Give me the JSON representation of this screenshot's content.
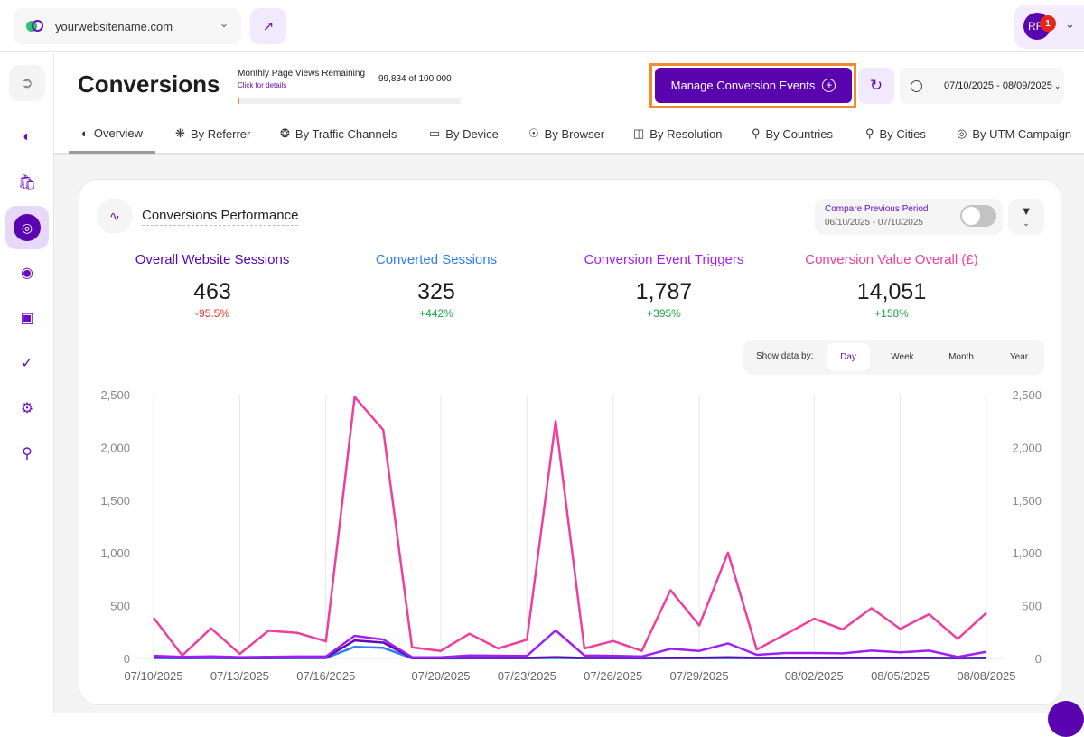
{
  "topbar": {
    "site": "yourwebsitename.com",
    "user_initials": "RF",
    "notification_count": "1"
  },
  "sidebar": {
    "items": [
      "collapse",
      "dashboard",
      "ecommerce",
      "conversions",
      "heatmaps",
      "feedback",
      "security",
      "settings",
      "locations"
    ],
    "active": "conversions"
  },
  "page": {
    "title": "Conversions",
    "page_views": {
      "label": "Monthly Page Views Remaining",
      "link": "Click for details",
      "value": "99,834 of 100,000",
      "used_fraction": 0.00166
    },
    "manage_button": "Manage Conversion Events",
    "date_range": "07/10/2025 - 08/09/2025"
  },
  "tabs": [
    {
      "label": "Overview",
      "icon": "overview-icon"
    },
    {
      "label": "By Referrer",
      "icon": "referrer-icon"
    },
    {
      "label": "By Traffic Channels",
      "icon": "channels-icon"
    },
    {
      "label": "By Device",
      "icon": "device-icon"
    },
    {
      "label": "By Browser",
      "icon": "browser-icon"
    },
    {
      "label": "By Resolution",
      "icon": "resolution-icon"
    },
    {
      "label": "By Countries",
      "icon": "location-icon"
    },
    {
      "label": "By Cities",
      "icon": "location-icon"
    },
    {
      "label": "By UTM Campaign",
      "icon": "utm-icon"
    }
  ],
  "card": {
    "title": "Conversions Performance",
    "compare": {
      "label": "Compare Previous Period",
      "range": "06/10/2025 - 07/10/2025",
      "enabled": false
    },
    "kpis": [
      {
        "title": "Overall Website Sessions",
        "value": "463",
        "delta": "-95.5%",
        "color": "#5a04b0",
        "delta_color": "#e0341f"
      },
      {
        "title": "Converted Sessions",
        "value": "325",
        "delta": "+442%",
        "color": "#2b7ff0",
        "delta_color": "#1fa34a"
      },
      {
        "title": "Conversion Event Triggers",
        "value": "1,787",
        "delta": "+395%",
        "color": "#a020f0",
        "delta_color": "#1fa34a"
      },
      {
        "title": "Conversion Value Overall (£)",
        "value": "14,051",
        "delta": "+158%",
        "color": "#ec3fa0",
        "delta_color": "#1fa34a"
      }
    ],
    "show_by": {
      "label": "Show data by:",
      "options": [
        "Day",
        "Week",
        "Month",
        "Year"
      ],
      "selected": "Day"
    }
  },
  "chart_data": {
    "type": "line",
    "x": [
      "07/10/2025",
      "07/11/2025",
      "07/12/2025",
      "07/13/2025",
      "07/14/2025",
      "07/15/2025",
      "07/16/2025",
      "07/17/2025",
      "07/18/2025",
      "07/19/2025",
      "07/20/2025",
      "07/21/2025",
      "07/22/2025",
      "07/23/2025",
      "07/24/2025",
      "07/25/2025",
      "07/26/2025",
      "07/27/2025",
      "07/28/2025",
      "07/29/2025",
      "07/30/2025",
      "07/31/2025",
      "08/01/2025",
      "08/02/2025",
      "08/03/2025",
      "08/04/2025",
      "08/05/2025",
      "08/06/2025",
      "08/07/2025",
      "08/08/2025"
    ],
    "xticks": [
      "07/10/2025",
      "07/13/2025",
      "07/16/2025",
      "07/20/2025",
      "07/23/2025",
      "07/26/2025",
      "07/29/2025",
      "08/02/2025",
      "08/05/2025",
      "08/08/2025"
    ],
    "ylim": [
      0,
      2500
    ],
    "yticks": [
      "0",
      "500",
      "1,000",
      "1,500",
      "2,000",
      "2,500"
    ],
    "grid": "vertical",
    "series": [
      {
        "color": "#ec3fa0",
        "values": [
          385,
          28,
          285,
          43,
          262,
          242,
          162,
          2478,
          2165,
          105,
          71,
          234,
          94,
          177,
          2250,
          94,
          165,
          71,
          647,
          313,
          1003,
          85,
          228,
          376,
          276,
          476,
          279,
          419,
          185,
          433
        ]
      },
      {
        "color": "#a020f0",
        "values": [
          25,
          15,
          20,
          12,
          15,
          18,
          18,
          214,
          179,
          12,
          10,
          28,
          26,
          24,
          265,
          28,
          25,
          18,
          91,
          71,
          142,
          34,
          51,
          51,
          48,
          74,
          57,
          74,
          14,
          63
        ]
      },
      {
        "color": "#5b0cb0",
        "values": [
          10,
          6,
          8,
          5,
          6,
          8,
          8,
          170,
          150,
          5,
          4,
          5,
          5,
          5,
          12,
          5,
          5,
          4,
          6,
          6,
          10,
          5,
          6,
          6,
          6,
          6,
          6,
          6,
          4,
          6
        ]
      },
      {
        "color": "#2b7ff0",
        "values": [
          3,
          2,
          3,
          2,
          2,
          3,
          3,
          110,
          100,
          2,
          1,
          2,
          2,
          2,
          4,
          2,
          2,
          1,
          2,
          2,
          3,
          2,
          2,
          2,
          2,
          2,
          2,
          2,
          1,
          2
        ]
      }
    ]
  }
}
